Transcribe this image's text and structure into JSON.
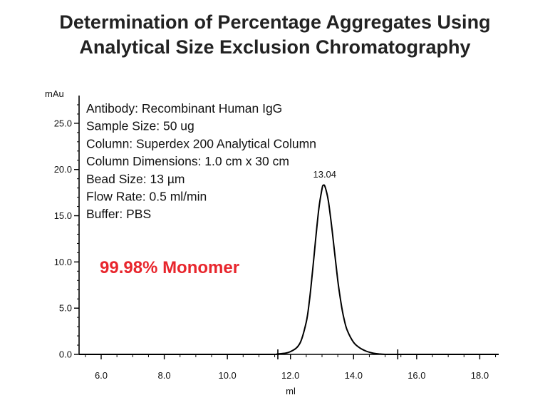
{
  "chart_data": {
    "type": "line",
    "title": "Determination of Percentage Aggregates Using Analytical Size Exclusion Chromatography",
    "title_lines": [
      "Determination of Percentage Aggregates Using",
      "Analytical Size Exclusion Chromatography"
    ],
    "xlabel": "ml",
    "ylabel": "mAu",
    "xlim": [
      5.3,
      18.6
    ],
    "ylim": [
      0,
      28
    ],
    "x_ticks": [
      "6.0",
      "8.0",
      "10.0",
      "12.0",
      "14.0",
      "16.0",
      "18.0"
    ],
    "y_ticks": [
      "0.0",
      "5.0",
      "10.0",
      "15.0",
      "20.0",
      "25.0"
    ],
    "series": [
      {
        "color": "#000000",
        "x": [
          5.3,
          11.0,
          11.6,
          12.0,
          12.3,
          12.5,
          12.6,
          12.7,
          12.8,
          12.9,
          13.0,
          13.04,
          13.1,
          13.2,
          13.3,
          13.4,
          13.5,
          13.6,
          13.7,
          13.8,
          14.0,
          14.2,
          14.4,
          14.6,
          14.8,
          15.0,
          15.3,
          15.6,
          18.6
        ],
        "y": [
          0.0,
          0.0,
          0.05,
          0.3,
          1.2,
          3.5,
          5.8,
          9.0,
          12.5,
          15.8,
          17.9,
          18.3,
          18.1,
          16.6,
          14.0,
          11.0,
          8.0,
          5.6,
          3.8,
          2.6,
          1.3,
          0.7,
          0.35,
          0.15,
          0.05,
          0.0,
          0.0,
          0.0,
          0.0
        ]
      }
    ],
    "integration_markers_x": [
      11.6,
      15.4
    ],
    "peak_label": {
      "x": 13.04,
      "y": 18.3,
      "text": "13.04"
    },
    "info_lines": [
      "Antibody:  Recombinant Human IgG",
      "Sample Size:  50 ug",
      "Column:  Superdex 200 Analytical Column",
      "Column Dimensions:  1.0 cm x 30 cm",
      "Bead Size:  13 µm",
      "Flow Rate:  0.5 ml/min",
      "Buffer:  PBS"
    ],
    "callout": {
      "text": "99.98% Monomer",
      "color": "#e8262d"
    },
    "grid": false,
    "legend": "none"
  }
}
